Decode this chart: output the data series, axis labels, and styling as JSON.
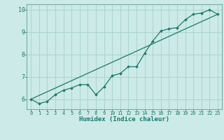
{
  "xlabel": "Humidex (Indice chaleur)",
  "bg_color": "#cceae7",
  "grid_color": "#aad4d0",
  "line_color": "#1a7a6e",
  "spine_color": "#7aada8",
  "xlim": [
    -0.5,
    23.5
  ],
  "ylim": [
    5.55,
    10.25
  ],
  "xticks": [
    0,
    1,
    2,
    3,
    4,
    5,
    6,
    7,
    8,
    9,
    10,
    11,
    12,
    13,
    14,
    15,
    16,
    17,
    18,
    19,
    20,
    21,
    22,
    23
  ],
  "yticks": [
    6,
    7,
    8,
    9,
    10
  ],
  "line1_x": [
    0,
    1,
    2,
    3,
    4,
    5,
    6,
    7,
    8,
    9,
    10,
    11,
    12,
    13,
    14,
    15,
    16,
    17,
    18,
    19,
    20,
    21,
    22,
    23
  ],
  "line1_y": [
    6.0,
    5.8,
    5.9,
    6.2,
    6.4,
    6.5,
    6.65,
    6.65,
    6.2,
    6.55,
    7.05,
    7.15,
    7.45,
    7.45,
    8.05,
    8.6,
    9.05,
    9.15,
    9.2,
    9.55,
    9.8,
    9.85,
    10.0,
    9.8
  ],
  "line2_x": [
    0,
    23
  ],
  "line2_y": [
    6.0,
    9.8
  ]
}
